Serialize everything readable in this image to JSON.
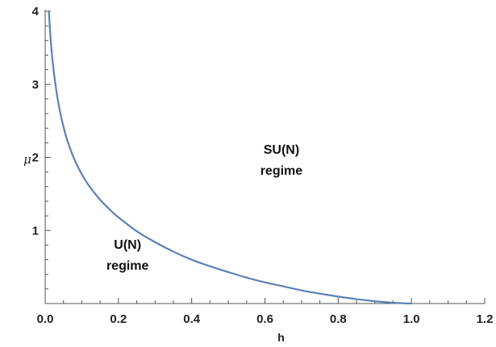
{
  "chart_data": {
    "type": "line",
    "title": "",
    "xlabel": "h",
    "ylabel": "μ",
    "xlim": [
      0,
      1.2
    ],
    "ylim": [
      0,
      4
    ],
    "grid": false,
    "x_ticks": [
      0.0,
      0.2,
      0.4,
      0.6,
      0.8,
      1.0,
      1.2
    ],
    "x_tick_labels": [
      "0.0",
      "0.2",
      "0.4",
      "0.6",
      "0.8",
      "1.0",
      "1.2"
    ],
    "y_ticks": [
      1,
      2,
      3,
      4
    ],
    "y_tick_labels": [
      "1",
      "2",
      "3",
      "4"
    ],
    "series": [
      {
        "color": "#5b80b8",
        "x": [
          0.01,
          0.015,
          0.02,
          0.03,
          0.04,
          0.05,
          0.06,
          0.08,
          0.1,
          0.12,
          0.15,
          0.18,
          0.2,
          0.25,
          0.3,
          0.35,
          0.4,
          0.45,
          0.5,
          0.55,
          0.6,
          0.65,
          0.7,
          0.75,
          0.8,
          0.85,
          0.9,
          0.95,
          0.98,
          1.0
        ],
        "y": [
          4.0,
          3.62,
          3.33,
          2.93,
          2.64,
          2.42,
          2.24,
          1.97,
          1.77,
          1.61,
          1.42,
          1.27,
          1.18,
          0.99,
          0.84,
          0.71,
          0.6,
          0.51,
          0.43,
          0.355,
          0.29,
          0.235,
          0.18,
          0.135,
          0.095,
          0.06,
          0.032,
          0.011,
          0.003,
          0.0
        ]
      }
    ],
    "annotations": [
      {
        "text": [
          "SU(N)",
          "regime"
        ],
        "x": 0.645,
        "y": 2.05
      },
      {
        "text": [
          "U(N)",
          "regime"
        ],
        "x": 0.225,
        "y": 0.75
      }
    ]
  }
}
